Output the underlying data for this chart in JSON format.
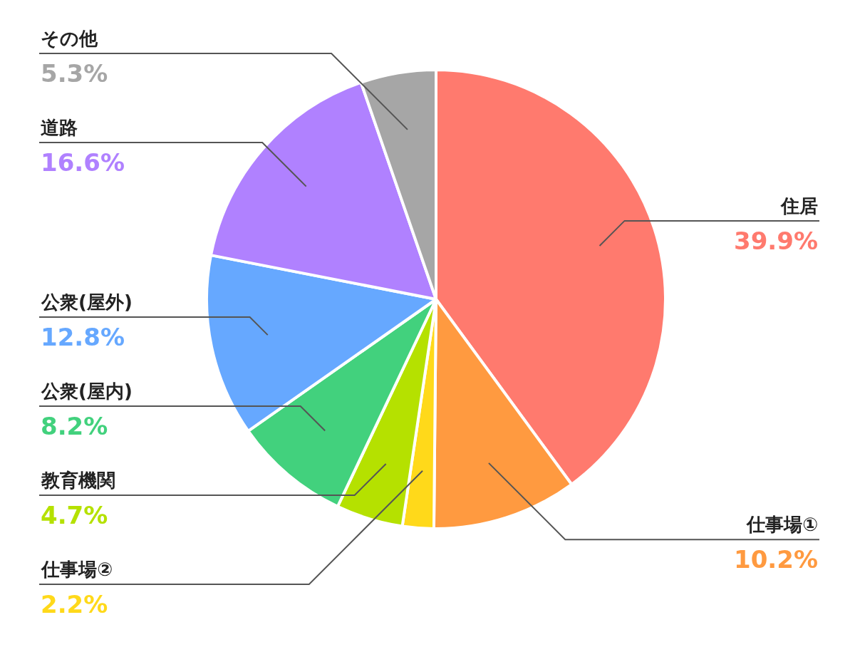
{
  "chart_data": {
    "type": "pie",
    "categories": [
      "住居",
      "仕事場①",
      "仕事場②",
      "教育機関",
      "公衆(屋内)",
      "公衆(屋外)",
      "道路",
      "その他"
    ],
    "values": [
      39.9,
      10.2,
      2.2,
      4.7,
      8.2,
      12.8,
      16.6,
      5.3
    ],
    "value_labels": [
      "39.9%",
      "10.2%",
      "2.2%",
      "4.7%",
      "8.2%",
      "12.8%",
      "16.6%",
      "5.3%"
    ],
    "colors": [
      "#ff7a6e",
      "#ff9a40",
      "#ffd91a",
      "#b5e100",
      "#42d17d",
      "#66a8ff",
      "#b081ff",
      "#a6a6a6"
    ],
    "legend": false
  }
}
